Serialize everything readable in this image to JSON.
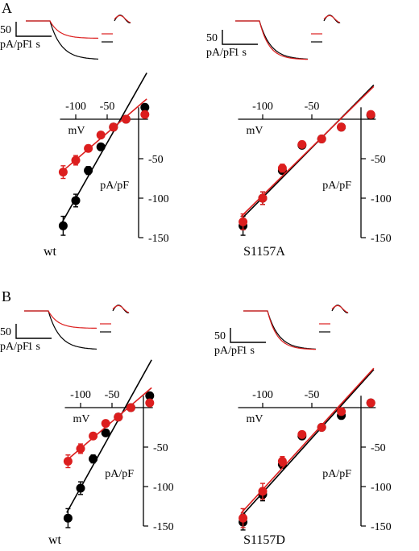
{
  "figure": {
    "sections": [
      "A",
      "B"
    ]
  },
  "colors": {
    "black_series": "#000000",
    "red_series": "#dc1e1e"
  },
  "chart_data": [
    {
      "type": "scatter",
      "panel": "A-left",
      "title": "wt",
      "xlabel": "mV",
      "ylabel": "pA/pF",
      "xlim": [
        -125,
        15
      ],
      "ylim": [
        -150,
        15
      ],
      "xticks": [
        -100,
        -50
      ],
      "yticks": [
        -50,
        -100,
        -150
      ],
      "x": [
        -120,
        -100,
        -80,
        -60,
        -40,
        -20,
        0,
        10
      ],
      "series": [
        {
          "color": "black",
          "values": [
            -135,
            -103,
            -65,
            -35,
            -10,
            0,
            8,
            15
          ],
          "err": [
            12,
            8,
            5,
            2,
            1,
            0,
            1,
            1
          ]
        },
        {
          "color": "red",
          "values": [
            -67,
            -52,
            -37,
            -20,
            -10,
            0,
            3,
            6
          ],
          "err": [
            8,
            6,
            4,
            2,
            1,
            0,
            1,
            1
          ]
        }
      ],
      "scale_bar": {
        "value": "50",
        "units": "pA/pF",
        "time": "1 s"
      }
    },
    {
      "type": "scatter",
      "panel": "A-right",
      "title": "S1157A",
      "xlabel": "mV",
      "ylabel": "pA/pF",
      "xlim": [
        -125,
        15
      ],
      "ylim": [
        -150,
        15
      ],
      "xticks": [
        -100,
        -50
      ],
      "yticks": [
        -50,
        -100,
        -150
      ],
      "x": [
        -120,
        -100,
        -80,
        -60,
        -40,
        -20,
        0,
        10
      ],
      "series": [
        {
          "color": "black",
          "values": [
            -135,
            -100,
            -65,
            -33,
            -25,
            -10,
            0,
            5
          ],
          "err": [
            12,
            8,
            4,
            2,
            1,
            1,
            1,
            1
          ]
        },
        {
          "color": "red",
          "values": [
            -130,
            -100,
            -62,
            -32,
            -25,
            -10,
            0,
            6
          ],
          "err": [
            10,
            8,
            5,
            2,
            1,
            1,
            1,
            1
          ]
        }
      ],
      "scale_bar": {
        "value": "50",
        "units": "pA/pF",
        "time": "1 s"
      }
    },
    {
      "type": "scatter",
      "panel": "B-left",
      "title": "wt",
      "xlabel": "mV",
      "ylabel": "pA/pF",
      "xlim": [
        -125,
        15
      ],
      "ylim": [
        -150,
        15
      ],
      "xticks": [
        -100,
        -50
      ],
      "yticks": [
        -50,
        -100,
        -150
      ],
      "x": [
        -120,
        -100,
        -80,
        -60,
        -40,
        -20,
        0,
        10
      ],
      "series": [
        {
          "color": "black",
          "values": [
            -140,
            -102,
            -65,
            -32,
            -12,
            0,
            8,
            15
          ],
          "err": [
            12,
            8,
            5,
            2,
            1,
            0,
            1,
            1
          ]
        },
        {
          "color": "red",
          "values": [
            -68,
            -52,
            -36,
            -20,
            -12,
            0,
            3,
            6
          ],
          "err": [
            8,
            6,
            4,
            2,
            1,
            0,
            1,
            1
          ]
        }
      ],
      "scale_bar": {
        "value": "50",
        "units": "pA/pF",
        "time": "1 s"
      }
    },
    {
      "type": "scatter",
      "panel": "B-right",
      "title": "S1157D",
      "xlabel": "mV",
      "ylabel": "pA/pF",
      "xlim": [
        -125,
        15
      ],
      "ylim": [
        -150,
        15
      ],
      "xticks": [
        -100,
        -50
      ],
      "yticks": [
        -50,
        -100,
        -150
      ],
      "x": [
        -120,
        -100,
        -80,
        -60,
        -40,
        -20,
        0,
        10
      ],
      "series": [
        {
          "color": "black",
          "values": [
            -145,
            -110,
            -72,
            -36,
            -25,
            -10,
            0,
            6
          ],
          "err": [
            10,
            8,
            5,
            2,
            1,
            1,
            1,
            1
          ]
        },
        {
          "color": "red",
          "values": [
            -140,
            -106,
            -68,
            -34,
            -25,
            -5,
            0,
            6
          ],
          "err": [
            12,
            10,
            6,
            2,
            1,
            1,
            1,
            1
          ]
        }
      ],
      "scale_bar": {
        "value": "50",
        "units": "pA/pF",
        "time": "1 s"
      }
    }
  ]
}
